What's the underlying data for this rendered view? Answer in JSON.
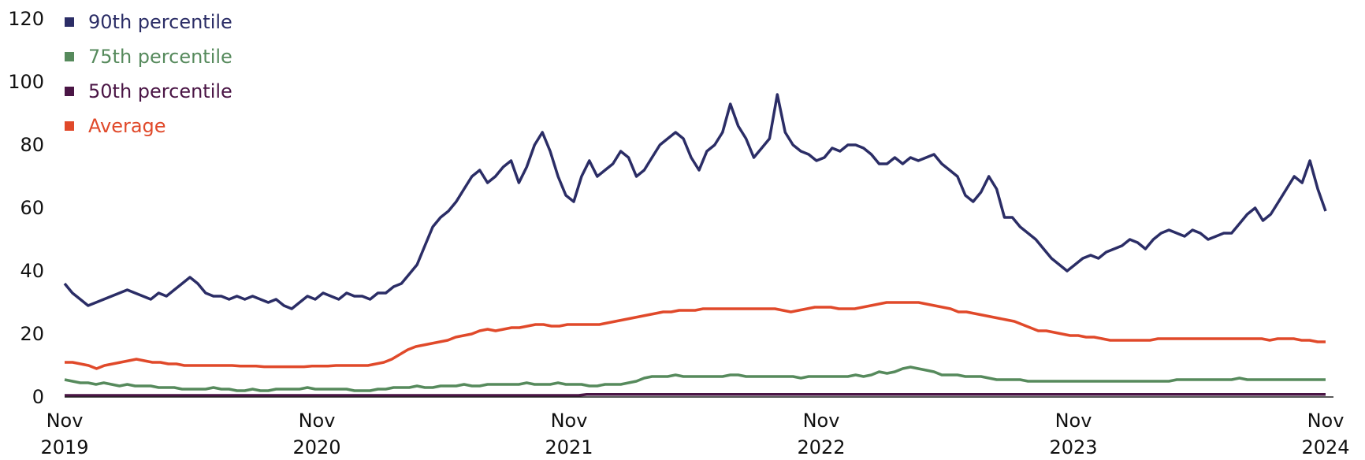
{
  "chart_data": {
    "type": "line",
    "title": "",
    "xlabel": "",
    "ylabel": "",
    "ylim": [
      0,
      120
    ],
    "yticks": [
      0,
      20,
      40,
      60,
      80,
      100,
      120
    ],
    "xticks": [
      {
        "label_top": "Nov",
        "label_bottom": "2019",
        "x": 0
      },
      {
        "label_top": "Nov",
        "label_bottom": "2020",
        "x": 1
      },
      {
        "label_top": "Nov",
        "label_bottom": "2021",
        "x": 2
      },
      {
        "label_top": "Nov",
        "label_bottom": "2022",
        "x": 3
      },
      {
        "label_top": "Nov",
        "label_bottom": "2023",
        "x": 4
      },
      {
        "label_top": "Nov",
        "label_bottom": "2024",
        "x": 5
      }
    ],
    "x_unit": "years since Nov 2019",
    "grid": false,
    "legend_position": "top-left",
    "series": [
      {
        "name": "90th percentile",
        "color": "#2b2d66",
        "step": 0.04,
        "values": [
          36,
          33,
          31,
          29,
          30,
          31,
          32,
          33,
          34,
          33,
          32,
          31,
          33,
          32,
          34,
          36,
          38,
          36,
          33,
          32,
          32,
          31,
          32,
          31,
          32,
          31,
          30,
          31,
          29,
          28,
          30,
          32,
          31,
          33,
          32,
          31,
          33,
          32,
          32,
          31,
          33,
          33,
          35,
          36,
          39,
          42,
          48,
          54,
          57,
          59,
          62,
          66,
          70,
          72,
          68,
          70,
          73,
          75,
          68,
          73,
          80,
          84,
          78,
          70,
          64,
          62,
          70,
          75,
          70,
          72,
          74,
          78,
          76,
          70,
          72,
          76,
          80,
          82,
          84,
          82,
          76,
          72,
          78,
          80,
          84,
          93,
          86,
          82,
          76,
          79,
          82,
          96,
          84,
          80,
          78,
          77,
          75,
          76,
          79,
          78,
          80,
          80,
          79,
          77,
          74,
          74,
          76,
          74,
          76,
          75,
          76,
          77,
          74,
          72,
          70,
          64,
          62,
          65,
          70,
          66,
          57,
          57,
          54,
          52,
          50,
          47,
          44,
          42,
          40,
          42,
          44,
          45,
          44,
          46,
          47,
          48,
          50,
          49,
          47,
          50,
          52,
          53,
          52,
          51,
          53,
          52,
          50,
          51,
          52,
          52,
          55,
          58,
          60,
          56,
          58,
          62,
          66,
          70,
          68,
          75,
          66,
          59
        ]
      },
      {
        "name": "75th percentile",
        "color": "#568a5c",
        "step": 0.04,
        "values": [
          5.5,
          5,
          4.5,
          4.5,
          4,
          4.5,
          4,
          3.5,
          4,
          3.5,
          3.5,
          3.5,
          3,
          3,
          3,
          2.5,
          2.5,
          2.5,
          2.5,
          3,
          2.5,
          2.5,
          2,
          2,
          2.5,
          2,
          2,
          2.5,
          2.5,
          2.5,
          2.5,
          3,
          2.5,
          2.5,
          2.5,
          2.5,
          2.5,
          2,
          2,
          2,
          2.5,
          2.5,
          3,
          3,
          3,
          3.5,
          3,
          3,
          3.5,
          3.5,
          3.5,
          4,
          3.5,
          3.5,
          4,
          4,
          4,
          4,
          4,
          4.5,
          4,
          4,
          4,
          4.5,
          4,
          4,
          4,
          3.5,
          3.5,
          4,
          4,
          4,
          4.5,
          5,
          6,
          6.5,
          6.5,
          6.5,
          7,
          6.5,
          6.5,
          6.5,
          6.5,
          6.5,
          6.5,
          7,
          7,
          6.5,
          6.5,
          6.5,
          6.5,
          6.5,
          6.5,
          6.5,
          6,
          6.5,
          6.5,
          6.5,
          6.5,
          6.5,
          6.5,
          7,
          6.5,
          7,
          8,
          7.5,
          8,
          9,
          9.5,
          9,
          8.5,
          8,
          7,
          7,
          7,
          6.5,
          6.5,
          6.5,
          6,
          5.5,
          5.5,
          5.5,
          5.5,
          5,
          5,
          5,
          5,
          5,
          5,
          5,
          5,
          5,
          5,
          5,
          5,
          5,
          5,
          5,
          5,
          5,
          5,
          5,
          5.5,
          5.5,
          5.5,
          5.5,
          5.5,
          5.5,
          5.5,
          5.5,
          6,
          5.5,
          5.5,
          5.5,
          5.5,
          5.5,
          5.5,
          5.5,
          5.5,
          5.5,
          5.5,
          5.5
        ]
      },
      {
        "name": "50th percentile",
        "color": "#4a1545",
        "step": 0.04,
        "values": [
          0.5,
          0.5,
          0.5,
          0.5,
          0.5,
          0.5,
          0.5,
          0.5,
          0.5,
          0.5,
          0.5,
          0.5,
          0.5,
          0.5,
          0.5,
          0.5,
          0.5,
          0.5,
          0.5,
          0.5,
          0.5,
          0.5,
          0.5,
          0.5,
          0.5,
          0.5,
          0.5,
          0.5,
          0.5,
          0.5,
          0.5,
          0.5,
          0.5,
          0.5,
          0.5,
          0.5,
          0.5,
          0.5,
          0.5,
          0.5,
          0.5,
          0.5,
          0.5,
          0.5,
          0.5,
          0.5,
          0.5,
          0.5,
          0.5,
          0.5,
          0.5,
          0.5,
          0.5,
          0.5,
          0.5,
          0.5,
          0.5,
          0.5,
          0.5,
          0.5,
          0.5,
          0.5,
          0.5,
          0.5,
          0.5,
          0.8,
          0.8,
          0.8,
          0.8,
          0.8,
          0.8,
          0.8,
          0.8,
          0.8,
          0.8,
          0.8,
          0.8,
          0.8,
          0.8,
          0.8,
          0.8,
          0.8,
          0.8,
          0.8,
          0.8,
          0.8,
          0.8,
          0.8,
          0.8,
          0.8,
          0.8,
          0.8,
          0.8,
          0.8,
          0.8,
          0.8,
          0.8,
          0.8,
          0.8,
          0.8,
          0.8,
          0.8,
          0.8,
          0.8,
          0.8,
          0.8,
          0.8,
          0.8,
          0.8,
          0.8,
          0.8,
          0.8,
          0.8,
          0.8,
          0.8,
          0.8,
          0.8,
          0.8,
          0.8,
          0.8,
          0.8,
          0.8,
          0.8,
          0.8,
          0.8,
          0.8,
          0.8,
          0.8,
          0.8,
          0.8,
          0.8,
          0.8,
          0.8,
          0.8,
          0.8,
          0.8,
          0.8,
          0.8,
          0.8,
          0.8,
          0.8,
          0.8,
          0.8,
          0.8,
          0.8,
          0.8,
          0.8,
          0.8,
          0.8,
          0.8,
          0.8,
          0.8,
          0.8,
          0.8,
          0.8,
          0.8,
          0.8,
          0.8
        ]
      },
      {
        "name": "Average",
        "color": "#e0492a",
        "step": 0.04,
        "values": [
          11,
          11,
          10.5,
          10,
          9,
          10,
          10.5,
          11,
          11.5,
          12,
          11.5,
          11,
          11,
          10.5,
          10.5,
          10,
          10,
          10,
          10,
          10,
          10,
          10,
          9.8,
          9.8,
          9.8,
          9.6,
          9.6,
          9.6,
          9.6,
          9.6,
          9.6,
          9.8,
          9.8,
          9.8,
          10,
          10,
          10,
          10,
          10,
          10.5,
          11,
          12,
          13.5,
          15,
          16,
          16.5,
          17,
          17.5,
          18,
          19,
          19.5,
          20,
          21,
          21.5,
          21,
          21.5,
          22,
          22,
          22.5,
          23,
          23,
          22.5,
          22.5,
          23,
          23,
          23,
          23,
          23,
          23.5,
          24,
          24.5,
          25,
          25.5,
          26,
          26.5,
          27,
          27,
          27.5,
          27.5,
          27.5,
          28,
          28,
          28,
          28,
          28,
          28,
          28,
          28,
          28,
          28,
          27.5,
          27,
          27.5,
          28,
          28.5,
          28.5,
          28.5,
          28,
          28,
          28,
          28.5,
          29,
          29.5,
          30,
          30,
          30,
          30,
          30,
          29.5,
          29,
          28.5,
          28,
          27,
          27,
          26.5,
          26,
          25.5,
          25,
          24.5,
          24,
          23,
          22,
          21,
          21,
          20.5,
          20,
          19.5,
          19.5,
          19,
          19,
          18.5,
          18,
          18,
          18,
          18,
          18,
          18,
          18.5,
          18.5,
          18.5,
          18.5,
          18.5,
          18.5,
          18.5,
          18.5,
          18.5,
          18.5,
          18.5,
          18.5,
          18.5,
          18.5,
          18,
          18.5,
          18.5,
          18.5,
          18,
          18,
          17.5,
          17.5
        ]
      }
    ]
  },
  "legend": {
    "items": [
      {
        "label": "90th percentile",
        "color": "#2b2d66"
      },
      {
        "label": "75th percentile",
        "color": "#568a5c"
      },
      {
        "label": "50th percentile",
        "color": "#4a1545"
      },
      {
        "label": "Average",
        "color": "#e0492a"
      }
    ]
  }
}
